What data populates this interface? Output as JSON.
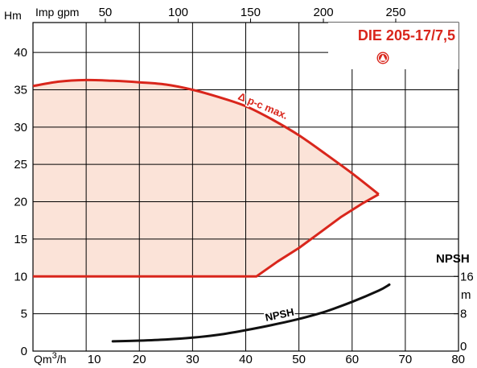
{
  "chart_data": {
    "type": "area",
    "title": "DIE 205-17/7,5",
    "xlabel": "Qm3/h",
    "ylabel": "Hm",
    "xlim": [
      0,
      80
    ],
    "ylim": [
      0,
      44
    ],
    "x_ticks": [
      10,
      20,
      30,
      40,
      50,
      60,
      70,
      80
    ],
    "y_ticks": [
      0,
      5,
      10,
      15,
      20,
      25,
      30,
      35,
      40
    ],
    "secondary_x_axis": {
      "label": "Imp gpm",
      "ticks": [
        50,
        100,
        150,
        200,
        250
      ],
      "tick_positions_m3h": [
        13.6,
        27.3,
        40.9,
        54.6,
        68.2
      ]
    },
    "npsh_axis": {
      "label": "NPSH",
      "unit": "m",
      "ticks": [
        0,
        8,
        16
      ],
      "tick_positions_hm": [
        0,
        5,
        10
      ]
    },
    "grid": true,
    "series": [
      {
        "name": "Δ p-c max.",
        "color": "#d9261c",
        "fill": "#fbe3d8",
        "upper": {
          "x": [
            0,
            5,
            10,
            15,
            20,
            25,
            30,
            35,
            40,
            45,
            50,
            55,
            60,
            65
          ],
          "y": [
            35.5,
            36.1,
            36.3,
            36.2,
            36.0,
            35.7,
            35.0,
            34.0,
            32.8,
            31.0,
            28.9,
            26.4,
            23.8,
            21.0
          ]
        },
        "lower": {
          "x": [
            0,
            42,
            46,
            50,
            54,
            58,
            62,
            65
          ],
          "y": [
            10,
            10,
            12.0,
            13.8,
            15.9,
            18.0,
            19.8,
            21.0
          ]
        }
      },
      {
        "name": "NPSH",
        "color": "#111111",
        "x": [
          15,
          20,
          25,
          30,
          35,
          40,
          45,
          50,
          55,
          60,
          65,
          67
        ],
        "y": [
          1.3,
          1.4,
          1.55,
          1.8,
          2.2,
          2.8,
          3.5,
          4.3,
          5.3,
          6.6,
          8.1,
          8.9
        ]
      }
    ],
    "logo_icon": "pump-logo-icon",
    "colors": {
      "accent": "#d9261c",
      "area_fill": "#fbe3d8",
      "grid": "#000000"
    }
  }
}
